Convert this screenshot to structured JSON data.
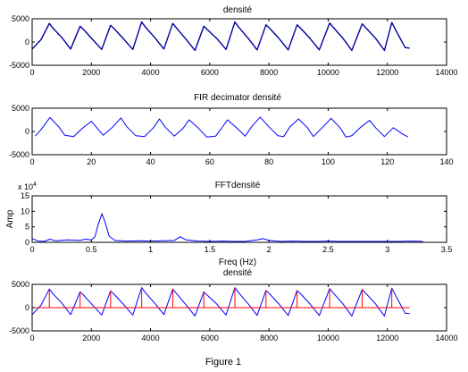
{
  "window": {
    "caption": "Figure 1"
  },
  "colors": {
    "signal": "#0000ff",
    "signal_dark": "#0000a0",
    "marker": "#ff0000",
    "axis": "#000000",
    "background": "#ffffff"
  },
  "chart_data": [
    {
      "type": "line",
      "title": "densité",
      "xlabel": "",
      "ylabel": "",
      "xlim": [
        0,
        14000
      ],
      "ylim": [
        -5000,
        5000
      ],
      "xticks": [
        0,
        2000,
        4000,
        6000,
        8000,
        10000,
        12000,
        14000
      ],
      "xtick_labels": [
        "0",
        "2000",
        "4000",
        "6000",
        "8000",
        "10000",
        "12000",
        "14000"
      ],
      "yticks": [
        -5000,
        0,
        5000
      ],
      "ytick_labels": [
        "-5000",
        "0",
        "5000"
      ],
      "grid": false,
      "series": [
        {
          "color": "#0000a0",
          "x": [
            0,
            300,
            580,
            700,
            1000,
            1300,
            1620,
            1750,
            2050,
            2350,
            2650,
            2780,
            3100,
            3400,
            3700,
            3830,
            4150,
            4450,
            4750,
            4880,
            5200,
            5500,
            5800,
            5930,
            6250,
            6550,
            6850,
            6980,
            7300,
            7600,
            7900,
            8030,
            8350,
            8650,
            8950,
            9080,
            9400,
            9700,
            10050,
            10180,
            10500,
            10800,
            11150,
            11280,
            11600,
            11900,
            12150,
            12280,
            12600,
            12750
          ],
          "y": [
            -1500,
            500,
            4000,
            3000,
            1000,
            -1500,
            3400,
            2600,
            500,
            -1600,
            3600,
            2800,
            600,
            -1600,
            4300,
            3200,
            900,
            -1500,
            4000,
            3000,
            600,
            -1800,
            3400,
            2600,
            700,
            -1600,
            4300,
            3200,
            800,
            -1700,
            3700,
            2900,
            700,
            -1700,
            3700,
            2900,
            700,
            -1700,
            4100,
            3100,
            800,
            -1800,
            3900,
            3000,
            800,
            -1800,
            4200,
            2600,
            -1200,
            -1300
          ]
        }
      ]
    },
    {
      "type": "line",
      "title": "FIR decimator densité",
      "xlabel": "",
      "ylabel": "",
      "xlim": [
        0,
        140
      ],
      "ylim": [
        -5000,
        5000
      ],
      "xticks": [
        0,
        20,
        40,
        60,
        80,
        100,
        120,
        140
      ],
      "xtick_labels": [
        "0",
        "20",
        "40",
        "60",
        "80",
        "100",
        "120",
        "140"
      ],
      "yticks": [
        -5000,
        0,
        5000
      ],
      "ytick_labels": [
        "-5000",
        "0",
        "5000"
      ],
      "grid": false,
      "series": [
        {
          "color": "#0000ff",
          "x": [
            1,
            3,
            6,
            9,
            11,
            14,
            17,
            20,
            22,
            24,
            27,
            30,
            32,
            35,
            38,
            41,
            43,
            45,
            48,
            51,
            53,
            56,
            59,
            62,
            64,
            66,
            69,
            72,
            74,
            77,
            80,
            83,
            85,
            87,
            90,
            93,
            95,
            98,
            101,
            104,
            106,
            108,
            111,
            114,
            116,
            119,
            122,
            125,
            127
          ],
          "y": [
            -1000,
            400,
            3000,
            1000,
            -800,
            -1100,
            700,
            2200,
            700,
            -800,
            800,
            2900,
            1000,
            -900,
            -1100,
            800,
            2700,
            900,
            -1000,
            700,
            2500,
            800,
            -1200,
            -1000,
            700,
            2500,
            800,
            -1000,
            900,
            3100,
            1000,
            -900,
            -1100,
            900,
            2700,
            800,
            -1100,
            800,
            2800,
            800,
            -1200,
            -900,
            900,
            2400,
            800,
            -1100,
            800,
            -500,
            -1200
          ]
        }
      ]
    },
    {
      "type": "line",
      "title": "FFTdensité",
      "xlabel": "Freq (Hz)",
      "ylabel": "Amp",
      "axis_multiplier": "x 10^4",
      "xlim": [
        0,
        3.5
      ],
      "ylim": [
        0,
        15
      ],
      "xticks": [
        0,
        0.5,
        1,
        1.5,
        2,
        2.5,
        3,
        3.5
      ],
      "xtick_labels": [
        "0",
        "0.5",
        "1",
        "1.5",
        "2",
        "2.5",
        "3",
        "3.5"
      ],
      "yticks": [
        0,
        5,
        10,
        15
      ],
      "ytick_labels": [
        "0",
        "5",
        "10",
        "15"
      ],
      "grid": false,
      "series": [
        {
          "color": "#0000ff",
          "x": [
            0,
            0.05,
            0.1,
            0.15,
            0.2,
            0.3,
            0.4,
            0.45,
            0.5,
            0.53,
            0.56,
            0.59,
            0.62,
            0.65,
            0.7,
            0.8,
            0.9,
            1.0,
            1.1,
            1.2,
            1.25,
            1.3,
            1.4,
            1.5,
            1.6,
            1.7,
            1.8,
            1.9,
            1.95,
            2.0,
            2.1,
            2.2,
            2.3,
            2.4,
            2.5,
            2.6,
            2.7,
            2.8,
            2.9,
            3.0,
            3.1,
            3.2,
            3.3
          ],
          "y": [
            1.2,
            0.4,
            0.3,
            1.0,
            0.5,
            0.8,
            0.6,
            1.0,
            0.8,
            1.8,
            6.0,
            9.3,
            6.0,
            2.0,
            0.6,
            0.4,
            0.5,
            0.4,
            0.5,
            0.6,
            1.8,
            0.8,
            0.4,
            0.3,
            0.4,
            0.3,
            0.3,
            0.8,
            1.2,
            0.6,
            0.3,
            0.4,
            0.3,
            0.3,
            0.4,
            0.3,
            0.3,
            0.3,
            0.3,
            0.3,
            0.3,
            0.4,
            0.3
          ]
        }
      ]
    },
    {
      "type": "line",
      "title": "densité",
      "xlabel": "",
      "ylabel": "",
      "xlim": [
        0,
        14000
      ],
      "ylim": [
        -5000,
        5000
      ],
      "xticks": [
        0,
        2000,
        4000,
        6000,
        8000,
        10000,
        12000,
        14000
      ],
      "xtick_labels": [
        "0",
        "2000",
        "4000",
        "6000",
        "8000",
        "10000",
        "12000",
        "14000"
      ],
      "yticks": [
        -5000,
        0,
        5000
      ],
      "ytick_labels": [
        "-5000",
        "0",
        "5000"
      ],
      "grid": false,
      "series": [
        {
          "color": "#0000ff",
          "x": [
            0,
            300,
            580,
            700,
            1000,
            1300,
            1620,
            1750,
            2050,
            2350,
            2650,
            2780,
            3100,
            3400,
            3700,
            3830,
            4150,
            4450,
            4750,
            4880,
            5200,
            5500,
            5800,
            5930,
            6250,
            6550,
            6850,
            6980,
            7300,
            7600,
            7900,
            8030,
            8350,
            8650,
            8950,
            9080,
            9400,
            9700,
            10050,
            10180,
            10500,
            10800,
            11150,
            11280,
            11600,
            11900,
            12150,
            12280,
            12600,
            12750
          ],
          "y": [
            -1500,
            500,
            4000,
            3000,
            1000,
            -1500,
            3400,
            2600,
            500,
            -1600,
            3600,
            2800,
            600,
            -1600,
            4300,
            3200,
            900,
            -1500,
            4000,
            3000,
            600,
            -1800,
            3400,
            2600,
            700,
            -1600,
            4300,
            3200,
            800,
            -1700,
            3700,
            2900,
            700,
            -1700,
            3700,
            2900,
            700,
            -1700,
            4100,
            3100,
            800,
            -1800,
            3900,
            3000,
            800,
            -1800,
            4200,
            2600,
            -1200,
            -1300
          ]
        },
        {
          "color": "#ff0000",
          "kind": "baseline",
          "x": [
            0,
            12750
          ],
          "y": [
            0,
            0
          ]
        },
        {
          "color": "#ff0000",
          "kind": "stem",
          "x": [
            580,
            1620,
            2650,
            3700,
            4750,
            5800,
            6850,
            7900,
            8950,
            10050,
            11150,
            12150
          ],
          "y": [
            4000,
            3400,
            3600,
            4300,
            4000,
            3400,
            4300,
            3700,
            3700,
            4100,
            3900,
            4200
          ]
        }
      ]
    }
  ]
}
